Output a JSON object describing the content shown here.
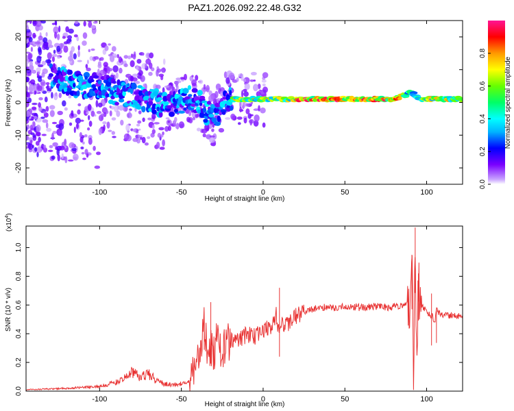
{
  "title": "PAZ1.2026.092.22.48.G32",
  "colors": {
    "snr_line": "#e83232",
    "plot_frame": "#000000",
    "background": "#ffffff"
  },
  "chart_data": [
    {
      "type": "heatmap",
      "xlabel": "Height of straight line (km)",
      "ylabel": "Frequency (Hz)",
      "xlim": [
        -145,
        122
      ],
      "ylim": [
        -25,
        25
      ],
      "x_ticks": [
        -100,
        -50,
        0,
        50,
        100
      ],
      "y_ticks": [
        20,
        10,
        0,
        -10,
        -20
      ],
      "grid": false,
      "colorbar": {
        "label": "Normalized spectral amplitude",
        "range": [
          0.0,
          1.0
        ],
        "ticks": [
          0.0,
          0.2,
          0.4,
          0.6,
          0.8
        ],
        "colormap": [
          "#ffffff",
          "#c9a4ff",
          "#7a00ff",
          "#0000ff",
          "#00b4ff",
          "#00ffff",
          "#00ff66",
          "#66ff00",
          "#ffff00",
          "#ff9900",
          "#ff0000",
          "#ff1493"
        ]
      },
      "ridge": {
        "height_km": [
          -145,
          -130,
          -120,
          -110,
          -100,
          -90,
          -80,
          -70,
          -60,
          -50,
          -45,
          -40,
          -35,
          -30,
          -25,
          -20,
          -10,
          0,
          20,
          40,
          60,
          80,
          90,
          95,
          100,
          122
        ],
        "frequency_hz": [
          10,
          8,
          6,
          5,
          5,
          3,
          2,
          1,
          -1,
          0,
          2,
          0,
          -3,
          -5,
          0,
          1,
          1,
          1,
          1,
          1,
          1,
          1,
          3,
          1,
          1,
          1
        ]
      }
    },
    {
      "type": "line",
      "xlabel": "Height of straight line (km)",
      "ylabel": "SNR (10 * v/v)",
      "y_scale_note": "(x10",
      "y_scale_exp": "4",
      "xlim": [
        -145,
        122
      ],
      "ylim": [
        0.0,
        1.15
      ],
      "x_ticks": [
        -100,
        -50,
        0,
        50,
        100
      ],
      "y_ticks": [
        0.0,
        0.2,
        0.4,
        0.6,
        0.8,
        1.0
      ],
      "y_tick_labels": [
        "0.0",
        "0.2",
        "0.4",
        "0.6",
        "0.8",
        "1.0"
      ],
      "grid": false,
      "series": [
        {
          "x": [
            -145,
            -130,
            -120,
            -110,
            -100,
            -90,
            -85,
            -80,
            -75,
            -70,
            -65,
            -60,
            -55,
            -50,
            -45,
            -42,
            -40,
            -38,
            -36,
            -34,
            -32,
            -30,
            -28,
            -26,
            -24,
            -22,
            -20,
            -15,
            -10,
            -5,
            0,
            5,
            8,
            10,
            12,
            15,
            20,
            25,
            30,
            35,
            40,
            45,
            50,
            55,
            60,
            65,
            70,
            75,
            80,
            85,
            88,
            90,
            91,
            92,
            93,
            94,
            95,
            96,
            98,
            100,
            103,
            105,
            106,
            110,
            115,
            120,
            122
          ],
          "y": [
            0.01,
            0.015,
            0.02,
            0.025,
            0.035,
            0.06,
            0.09,
            0.13,
            0.1,
            0.12,
            0.07,
            0.05,
            0.045,
            0.05,
            0.07,
            0.12,
            0.2,
            0.3,
            0.48,
            0.22,
            0.32,
            0.28,
            0.36,
            0.27,
            0.3,
            0.32,
            0.36,
            0.35,
            0.4,
            0.38,
            0.43,
            0.45,
            0.53,
            0.4,
            0.47,
            0.46,
            0.52,
            0.55,
            0.57,
            0.58,
            0.59,
            0.58,
            0.59,
            0.59,
            0.58,
            0.59,
            0.59,
            0.58,
            0.59,
            0.6,
            0.62,
            0.5,
            0.95,
            0.1,
            1.14,
            0.06,
            0.82,
            0.6,
            0.58,
            0.56,
            0.53,
            0.48,
            0.56,
            0.53,
            0.53,
            0.52,
            0.52
          ]
        }
      ]
    }
  ]
}
